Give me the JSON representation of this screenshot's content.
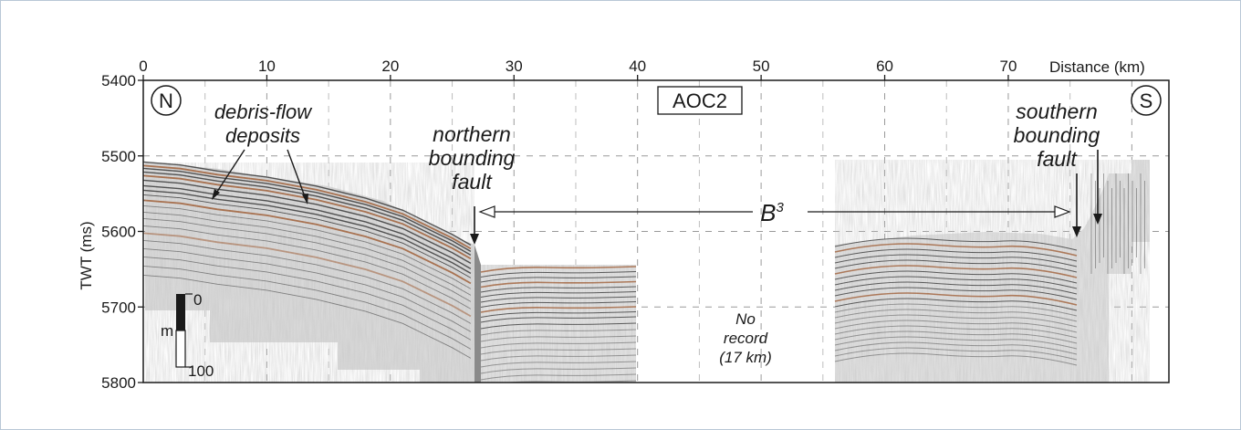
{
  "figure": {
    "label": "AOC2",
    "north_marker": "N",
    "south_marker": "S",
    "x_axis": {
      "title": "Distance (km)",
      "range": [
        0,
        83
      ],
      "ticks": [
        0,
        10,
        20,
        30,
        40,
        50,
        60,
        70
      ],
      "tick_labels": [
        "0",
        "10",
        "20",
        "30",
        "40",
        "50",
        "60",
        "70"
      ]
    },
    "y_axis": {
      "title": "TWT (ms)",
      "range": [
        5400,
        5800
      ],
      "ticks": [
        5400,
        5500,
        5600,
        5700,
        5800
      ],
      "tick_labels": [
        "5400",
        "5500",
        "5600",
        "5700",
        "5800"
      ],
      "inverted": true
    },
    "grid": "dashed",
    "annotations": {
      "debris": [
        "debris-flow",
        "deposits"
      ],
      "northern_fault": [
        "northern",
        "bounding",
        "fault"
      ],
      "southern_fault": [
        "southern",
        "bounding",
        "fault"
      ],
      "b3_base": "B",
      "b3_sup": "3",
      "no_record": [
        "No",
        "record",
        "(17 km)"
      ]
    },
    "scale_bar": {
      "unit": "m",
      "top_label": "0",
      "bottom_label": "100"
    },
    "seafloor_profile_km_ms": [
      [
        0,
        5508
      ],
      [
        3,
        5512
      ],
      [
        6,
        5520
      ],
      [
        10,
        5528
      ],
      [
        14,
        5540
      ],
      [
        18,
        5556
      ],
      [
        21,
        5572
      ],
      [
        23,
        5588
      ],
      [
        25,
        5604
      ],
      [
        26.5,
        5618
      ]
    ],
    "colors": {
      "reflector_dark": "#3a3a3a",
      "reflector_brown": "#a0603a",
      "grid": "#9a9a9a",
      "frame": "#b8c7d6"
    }
  }
}
